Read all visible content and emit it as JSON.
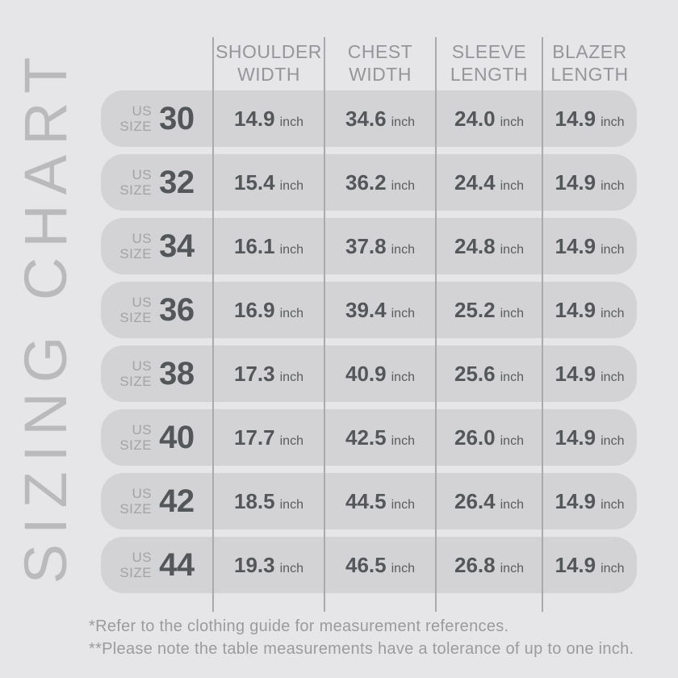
{
  "title": {
    "vertical_label": "SIZING CHART"
  },
  "table": {
    "size_label_prefix": {
      "line1": "US",
      "line2": "SIZE"
    },
    "unit": "inch",
    "columns": [
      {
        "line1": "SHOULDER",
        "line2": "WIDTH"
      },
      {
        "line1": "CHEST",
        "line2": "WIDTH"
      },
      {
        "line1": "SLEEVE",
        "line2": "LENGTH"
      },
      {
        "line1": "BLAZER",
        "line2": "LENGTH"
      }
    ],
    "rows": [
      {
        "size": "30",
        "shoulder": "14.9",
        "chest": "34.6",
        "sleeve": "24.0",
        "blazer": "14.9"
      },
      {
        "size": "32",
        "shoulder": "15.4",
        "chest": "36.2",
        "sleeve": "24.4",
        "blazer": "14.9"
      },
      {
        "size": "34",
        "shoulder": "16.1",
        "chest": "37.8",
        "sleeve": "24.8",
        "blazer": "14.9"
      },
      {
        "size": "36",
        "shoulder": "16.9",
        "chest": "39.4",
        "sleeve": "25.2",
        "blazer": "14.9"
      },
      {
        "size": "38",
        "shoulder": "17.3",
        "chest": "40.9",
        "sleeve": "25.6",
        "blazer": "14.9"
      },
      {
        "size": "40",
        "shoulder": "17.7",
        "chest": "42.5",
        "sleeve": "26.0",
        "blazer": "14.9"
      },
      {
        "size": "42",
        "shoulder": "18.5",
        "chest": "44.5",
        "sleeve": "26.4",
        "blazer": "14.9"
      },
      {
        "size": "44",
        "shoulder": "19.3",
        "chest": "46.5",
        "sleeve": "26.8",
        "blazer": "14.9"
      }
    ]
  },
  "footnotes": {
    "line1": "*Refer to the clothing guide for measurement references.",
    "line2": "**Please note the table measurements have a tolerance of up to one inch."
  },
  "colors": {
    "background": "#e6e6e8",
    "row_pill": "#d3d3d5",
    "divider_line": "#aaaaac",
    "dark_text": "#54575a",
    "header_text": "#96969a",
    "label_text": "#a3a3a5",
    "footnote_text": "#9b9b9d",
    "vertical_title_text": "#bababc"
  },
  "chart_data": {
    "type": "table",
    "title": "SIZING CHART",
    "columns": [
      "US Size",
      "Shoulder Width (inch)",
      "Chest Width (inch)",
      "Sleeve Length (inch)",
      "Blazer Length (inch)"
    ],
    "rows": [
      [
        30,
        14.9,
        34.6,
        24.0,
        14.9
      ],
      [
        32,
        15.4,
        36.2,
        24.4,
        14.9
      ],
      [
        34,
        16.1,
        37.8,
        24.8,
        14.9
      ],
      [
        36,
        16.9,
        39.4,
        25.2,
        14.9
      ],
      [
        38,
        17.3,
        40.9,
        25.6,
        14.9
      ],
      [
        40,
        17.7,
        42.5,
        26.0,
        14.9
      ],
      [
        42,
        18.5,
        44.5,
        26.4,
        14.9
      ],
      [
        44,
        19.3,
        46.5,
        26.8,
        14.9
      ]
    ],
    "annotations": [
      "*Refer to the clothing guide for measurement references.",
      "**Please note the table measurements have a tolerance of up to one inch."
    ]
  }
}
